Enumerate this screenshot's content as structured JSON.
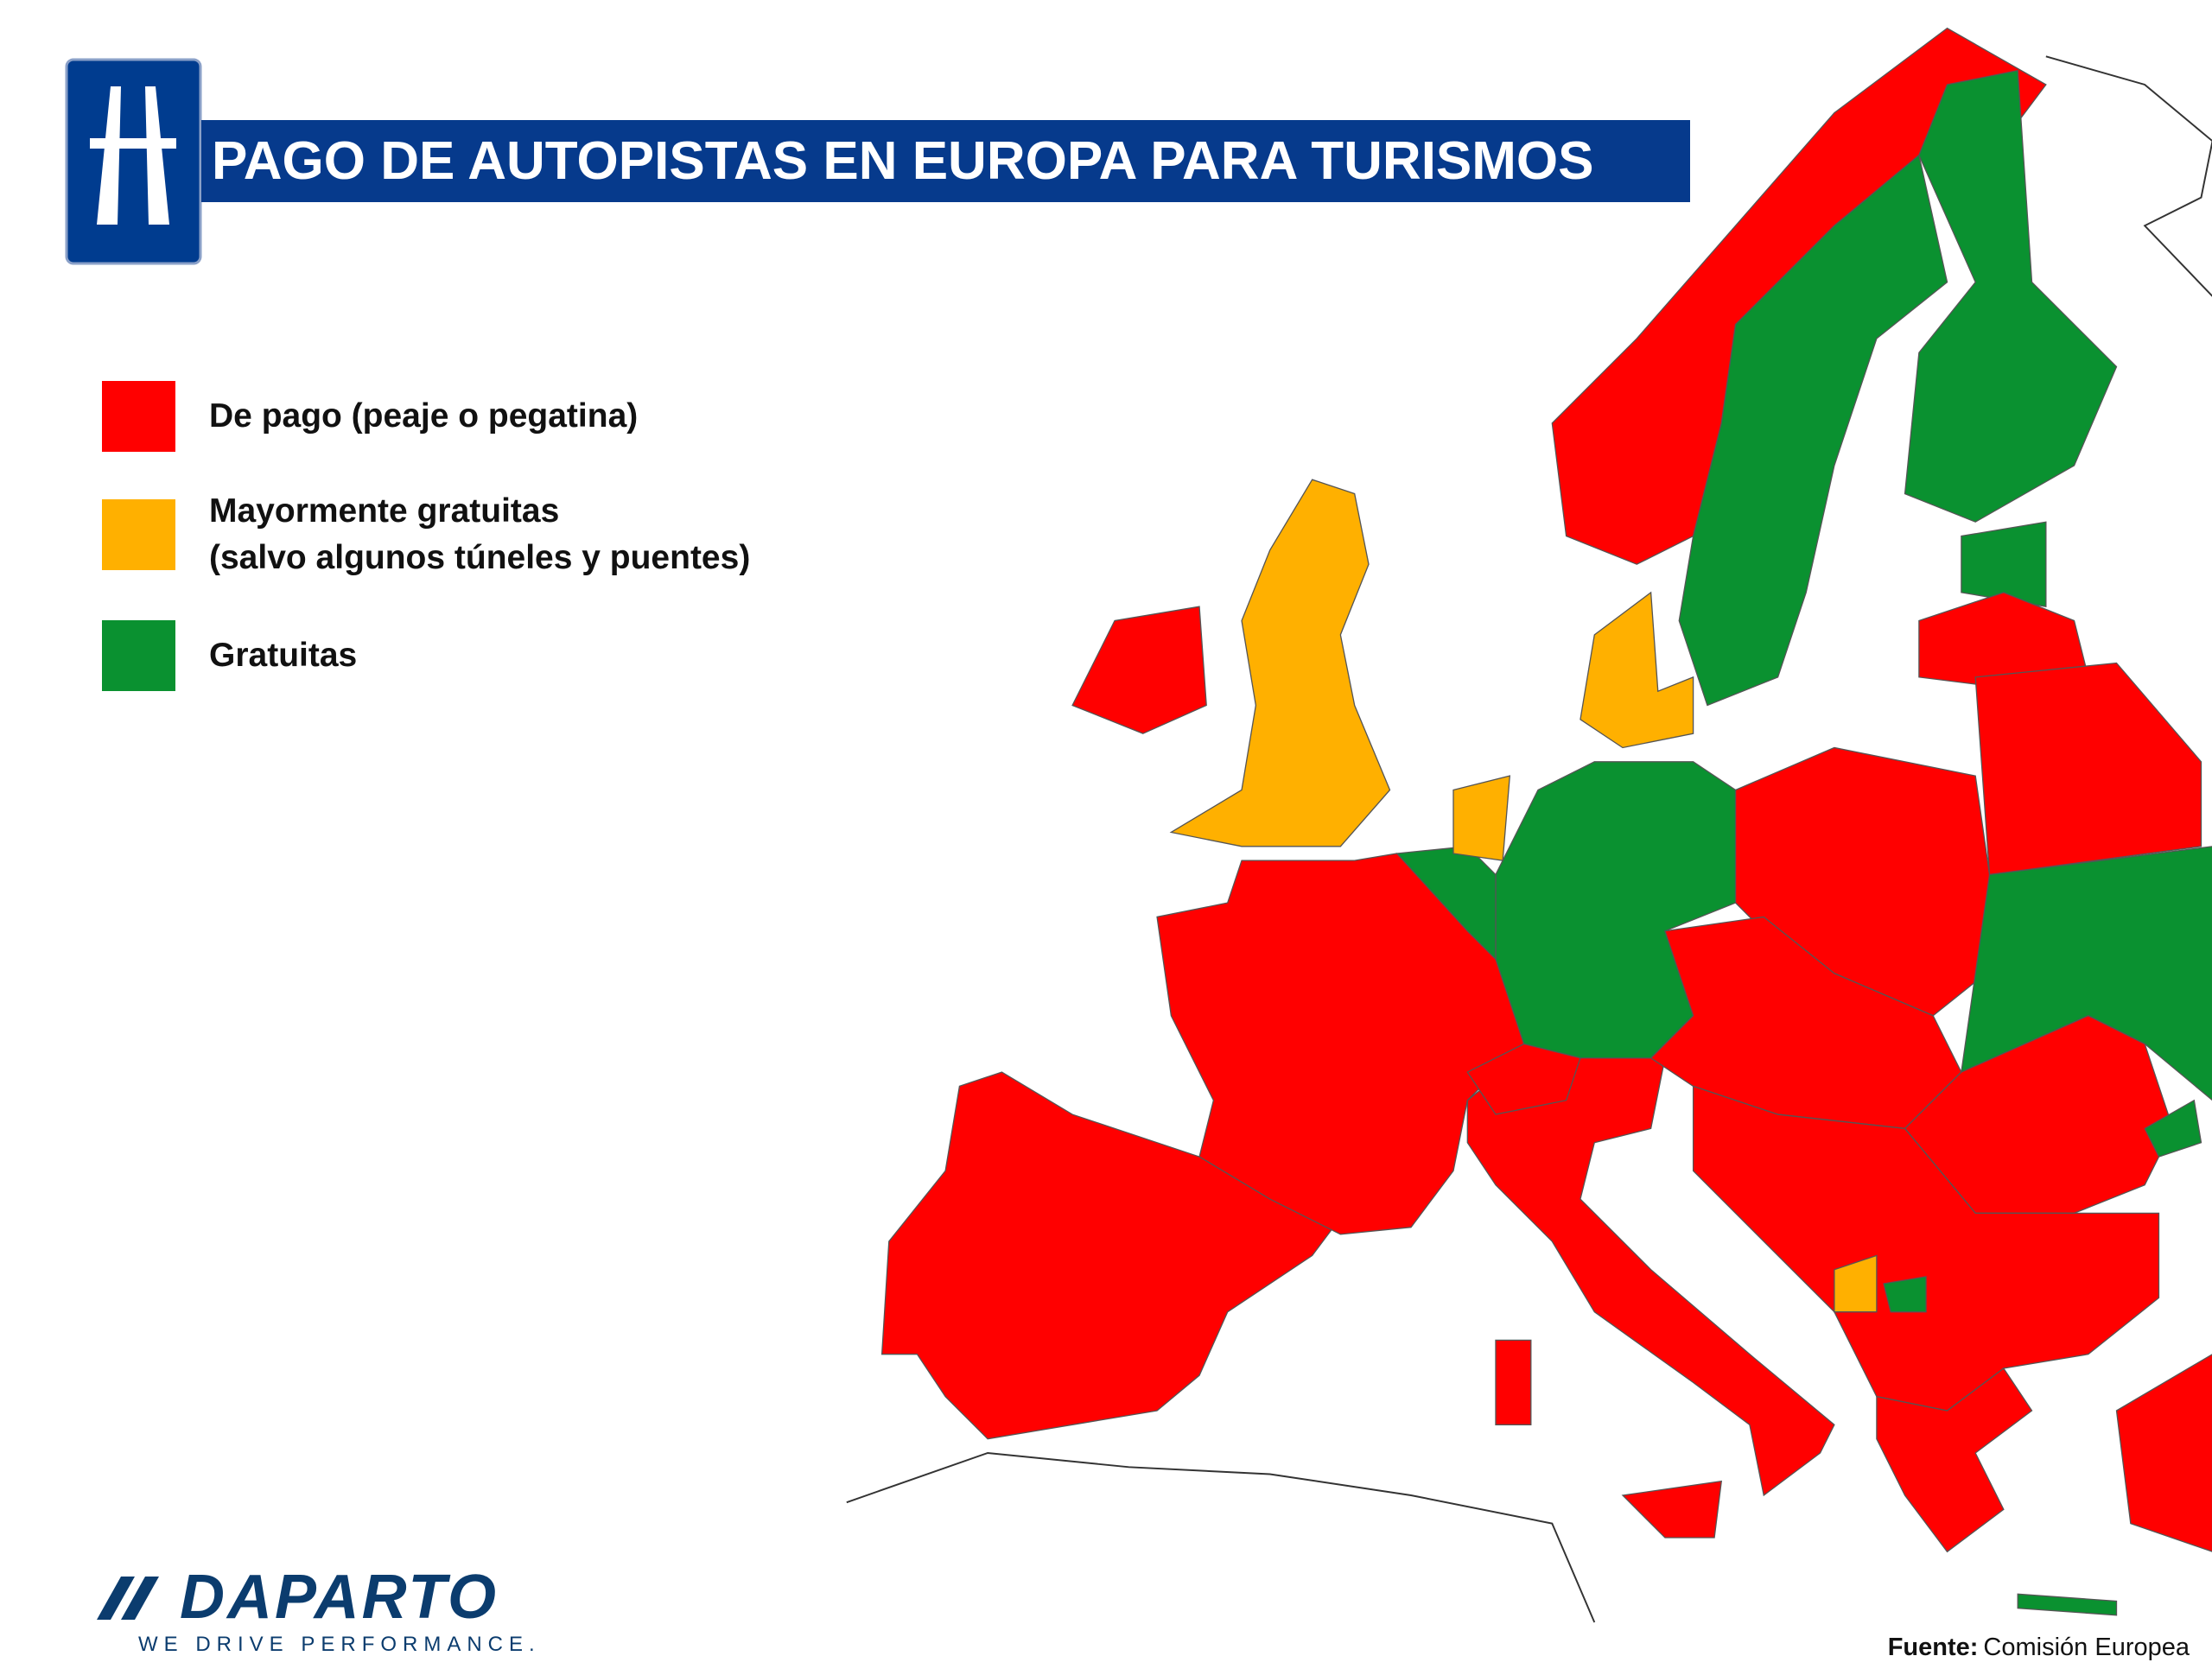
{
  "header": {
    "title": "PAGO DE AUTOPISTAS EN EUROPA PARA TURISMOS"
  },
  "legend": [
    {
      "lines": [
        "De pago (peaje o pegatina)"
      ],
      "color": "#ff0000"
    },
    {
      "lines": [
        "Mayormente gratuitas",
        "(salvo algunos túneles y puentes)"
      ],
      "color": "#ffb000"
    },
    {
      "lines": [
        "Gratuitas"
      ],
      "color": "#0a9130"
    }
  ],
  "logo": {
    "name": "DAPARTO",
    "tagline": "WE DRIVE PERFORMANCE."
  },
  "source": {
    "label": "Fuente:",
    "text": "Comisión Europea"
  }
}
